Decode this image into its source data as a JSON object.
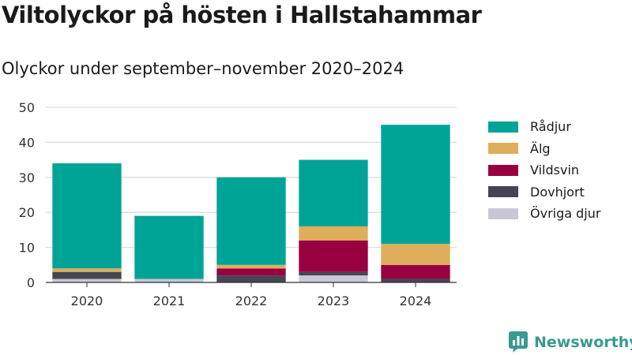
{
  "header": {
    "title": "Viltolyckor på hösten i Hallstahammar",
    "subtitle": "Olyckor under september–november 2020–2024"
  },
  "legend": [
    {
      "label": "Rådjur",
      "color": "#00a497"
    },
    {
      "label": "Älg",
      "color": "#deae5b"
    },
    {
      "label": "Vildsvin",
      "color": "#980040"
    },
    {
      "label": "Dovhjort",
      "color": "#474452"
    },
    {
      "label": "Övriga djur",
      "color": "#c9c7d4"
    }
  ],
  "branding": {
    "name": "Newsworthy",
    "icon": "newsworthy-logo-icon",
    "color": "#3a9990"
  },
  "chart_data": {
    "type": "bar",
    "stacked": true,
    "categories": [
      "2020",
      "2021",
      "2022",
      "2023",
      "2024"
    ],
    "series": [
      {
        "name": "Övriga djur",
        "color": "#c9c7d4",
        "values": [
          1,
          1,
          0,
          2,
          0
        ]
      },
      {
        "name": "Dovhjort",
        "color": "#474452",
        "values": [
          2,
          0,
          2,
          1,
          1
        ]
      },
      {
        "name": "Vildsvin",
        "color": "#980040",
        "values": [
          0,
          0,
          2,
          9,
          4
        ]
      },
      {
        "name": "Älg",
        "color": "#deae5b",
        "values": [
          1,
          0,
          1,
          4,
          6
        ]
      },
      {
        "name": "Rådjur",
        "color": "#00a497",
        "values": [
          30,
          18,
          25,
          19,
          34
        ]
      }
    ],
    "yticks": [
      "0",
      "10",
      "20",
      "30",
      "40",
      "50"
    ],
    "ylim": [
      0,
      50
    ],
    "grid": true,
    "xlabel": "",
    "ylabel": "",
    "legend_position": "right"
  }
}
